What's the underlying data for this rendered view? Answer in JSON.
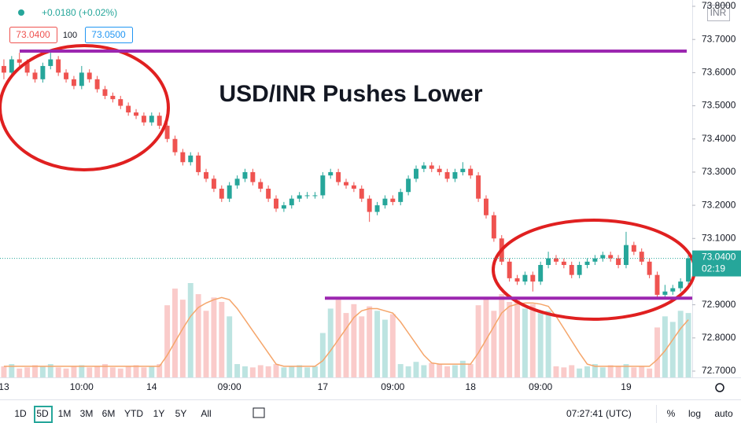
{
  "chart_data": {
    "type": "candlestick",
    "title": "USD/INR Pushes Lower",
    "header": {
      "change": "+0.0180 (+0.02%)",
      "bid": "73.0400",
      "spread": "100",
      "ask": "73.0500"
    },
    "currency": "INR",
    "up_color": "#26a69a",
    "down_color": "#ef5350",
    "ma_color": "#f5a56a",
    "level_color": "#9c27b0",
    "categories": [
      "13",
      null,
      null,
      null,
      null,
      null,
      null,
      null,
      null,
      null,
      "10:00",
      null,
      null,
      null,
      null,
      null,
      null,
      null,
      null,
      "14",
      null,
      null,
      null,
      null,
      null,
      null,
      null,
      null,
      null,
      "09:00",
      null,
      null,
      null,
      null,
      null,
      null,
      null,
      null,
      null,
      null,
      null,
      "17",
      null,
      null,
      null,
      null,
      null,
      null,
      null,
      null,
      "09:00",
      null,
      null,
      null,
      null,
      null,
      null,
      null,
      null,
      null,
      "18",
      null,
      null,
      null,
      null,
      null,
      null,
      null,
      null,
      "09:00",
      null,
      null,
      null,
      null,
      null,
      null,
      null,
      null,
      null,
      null,
      "19",
      null,
      null,
      null,
      null,
      null,
      null,
      null,
      null
    ],
    "ohlc": [
      [
        73.62,
        73.64,
        73.58,
        73.6
      ],
      [
        73.6,
        73.65,
        73.59,
        73.64
      ],
      [
        73.64,
        73.66,
        73.62,
        73.63
      ],
      [
        73.63,
        73.64,
        73.59,
        73.6
      ],
      [
        73.6,
        73.61,
        73.57,
        73.58
      ],
      [
        73.58,
        73.63,
        73.57,
        73.62
      ],
      [
        73.62,
        73.66,
        73.61,
        73.64
      ],
      [
        73.64,
        73.65,
        73.59,
        73.6
      ],
      [
        73.6,
        73.61,
        73.57,
        73.58
      ],
      [
        73.58,
        73.59,
        73.55,
        73.56
      ],
      [
        73.56,
        73.62,
        73.55,
        73.6
      ],
      [
        73.6,
        73.61,
        73.57,
        73.58
      ],
      [
        73.58,
        73.59,
        73.54,
        73.55
      ],
      [
        73.55,
        73.56,
        73.52,
        73.53
      ],
      [
        73.53,
        73.54,
        73.51,
        73.52
      ],
      [
        73.52,
        73.53,
        73.49,
        73.5
      ],
      [
        73.5,
        73.51,
        73.47,
        73.48
      ],
      [
        73.48,
        73.49,
        73.46,
        73.47
      ],
      [
        73.47,
        73.48,
        73.44,
        73.45
      ],
      [
        73.45,
        73.48,
        73.44,
        73.47
      ],
      [
        73.47,
        73.48,
        73.43,
        73.44
      ],
      [
        73.44,
        73.45,
        73.39,
        73.4
      ],
      [
        73.4,
        73.41,
        73.35,
        73.36
      ],
      [
        73.36,
        73.37,
        73.32,
        73.33
      ],
      [
        73.33,
        73.36,
        73.32,
        73.35
      ],
      [
        73.35,
        73.36,
        73.29,
        73.3
      ],
      [
        73.3,
        73.31,
        73.27,
        73.28
      ],
      [
        73.28,
        73.29,
        73.24,
        73.25
      ],
      [
        73.25,
        73.26,
        73.21,
        73.22
      ],
      [
        73.22,
        73.27,
        73.21,
        73.26
      ],
      [
        73.26,
        73.29,
        73.25,
        73.28
      ],
      [
        73.28,
        73.31,
        73.27,
        73.3
      ],
      [
        73.3,
        73.31,
        73.26,
        73.27
      ],
      [
        73.27,
        73.28,
        73.24,
        73.25
      ],
      [
        73.25,
        73.26,
        73.21,
        73.22
      ],
      [
        73.22,
        73.23,
        73.18,
        73.19
      ],
      [
        73.19,
        73.21,
        73.18,
        73.2
      ],
      [
        73.2,
        73.23,
        73.19,
        73.22
      ],
      [
        73.22,
        73.24,
        73.21,
        73.23
      ],
      [
        73.23,
        73.24,
        73.22,
        73.23
      ],
      [
        73.23,
        73.24,
        73.22,
        73.23
      ],
      [
        73.23,
        73.3,
        73.22,
        73.29
      ],
      [
        73.29,
        73.31,
        73.28,
        73.3
      ],
      [
        73.3,
        73.31,
        73.26,
        73.27
      ],
      [
        73.27,
        73.28,
        73.25,
        73.26
      ],
      [
        73.26,
        73.27,
        73.24,
        73.25
      ],
      [
        73.25,
        73.26,
        73.21,
        73.22
      ],
      [
        73.22,
        73.23,
        73.15,
        73.18
      ],
      [
        73.18,
        73.21,
        73.17,
        73.2
      ],
      [
        73.2,
        73.23,
        73.19,
        73.22
      ],
      [
        73.22,
        73.23,
        73.2,
        73.21
      ],
      [
        73.21,
        73.25,
        73.2,
        73.24
      ],
      [
        73.24,
        73.29,
        73.23,
        73.28
      ],
      [
        73.28,
        73.32,
        73.27,
        73.31
      ],
      [
        73.31,
        73.33,
        73.3,
        73.32
      ],
      [
        73.32,
        73.33,
        73.3,
        73.31
      ],
      [
        73.31,
        73.32,
        73.29,
        73.3
      ],
      [
        73.3,
        73.31,
        73.27,
        73.28
      ],
      [
        73.28,
        73.31,
        73.27,
        73.3
      ],
      [
        73.3,
        73.33,
        73.29,
        73.31
      ],
      [
        73.31,
        73.32,
        73.28,
        73.29
      ],
      [
        73.29,
        73.3,
        73.21,
        73.22
      ],
      [
        73.22,
        73.23,
        73.16,
        73.17
      ],
      [
        73.17,
        73.18,
        73.09,
        73.1
      ],
      [
        73.1,
        73.11,
        73.02,
        73.03
      ],
      [
        73.03,
        73.04,
        72.97,
        72.98
      ],
      [
        72.98,
        72.99,
        72.96,
        72.97
      ],
      [
        72.97,
        73.0,
        72.96,
        72.99
      ],
      [
        72.99,
        73.0,
        72.94,
        72.97
      ],
      [
        72.97,
        73.03,
        72.96,
        73.02
      ],
      [
        73.02,
        73.06,
        73.01,
        73.04
      ],
      [
        73.04,
        73.05,
        73.02,
        73.03
      ],
      [
        73.03,
        73.04,
        73.01,
        73.02
      ],
      [
        73.02,
        73.03,
        72.98,
        72.99
      ],
      [
        72.99,
        73.03,
        72.98,
        73.02
      ],
      [
        73.02,
        73.04,
        73.01,
        73.03
      ],
      [
        73.03,
        73.05,
        73.02,
        73.04
      ],
      [
        73.04,
        73.06,
        73.03,
        73.05
      ],
      [
        73.05,
        73.06,
        73.03,
        73.04
      ],
      [
        73.04,
        73.05,
        73.01,
        73.02
      ],
      [
        73.02,
        73.12,
        73.01,
        73.08
      ],
      [
        73.08,
        73.09,
        73.05,
        73.06
      ],
      [
        73.06,
        73.07,
        73.02,
        73.03
      ],
      [
        73.03,
        73.04,
        72.98,
        72.99
      ],
      [
        72.99,
        73.0,
        72.92,
        72.93
      ],
      [
        72.93,
        72.96,
        72.92,
        72.94
      ],
      [
        72.94,
        72.96,
        72.93,
        72.95
      ],
      [
        72.95,
        72.98,
        72.94,
        72.97
      ],
      [
        72.97,
        73.05,
        72.96,
        73.04
      ]
    ],
    "volume": [
      10,
      12,
      8,
      9,
      11,
      10,
      12,
      9,
      8,
      10,
      11,
      9,
      10,
      12,
      9,
      8,
      10,
      11,
      9,
      10,
      12,
      65,
      80,
      70,
      85,
      75,
      60,
      72,
      68,
      55,
      12,
      10,
      9,
      11,
      10,
      12,
      9,
      10,
      11,
      9,
      10,
      40,
      62,
      70,
      58,
      66,
      55,
      64,
      60,
      52,
      57,
      12,
      10,
      14,
      11,
      13,
      12,
      10,
      11,
      15,
      12,
      65,
      72,
      60,
      75,
      68,
      70,
      62,
      66,
      58,
      60,
      10,
      9,
      11,
      8,
      10,
      12,
      9,
      11,
      10,
      12,
      9,
      10,
      8,
      45,
      55,
      50,
      60,
      58
    ],
    "volume_ma": [
      10,
      10,
      10,
      10,
      10,
      10,
      10,
      10,
      10,
      10,
      10,
      10,
      10,
      10,
      10,
      10,
      10,
      10,
      10,
      10,
      10,
      20,
      32,
      44,
      55,
      63,
      67,
      70,
      72,
      70,
      62,
      52,
      42,
      32,
      22,
      12,
      10,
      10,
      10,
      10,
      10,
      15,
      24,
      34,
      44,
      54,
      60,
      62,
      62,
      60,
      58,
      50,
      40,
      30,
      20,
      13,
      12,
      12,
      12,
      12,
      12,
      22,
      34,
      46,
      58,
      64,
      66,
      67,
      67,
      66,
      64,
      55,
      44,
      33,
      22,
      12,
      10,
      10,
      10,
      10,
      10,
      10,
      10,
      10,
      16,
      24,
      34,
      44,
      52
    ],
    "levels": [
      73.665,
      72.92
    ],
    "last_price": {
      "value": 73.04,
      "label": "73.0400"
    },
    "countdown": "02:19",
    "ylim": [
      72.681,
      73.819
    ],
    "yticks": [
      {
        "value": 72.7,
        "label": "72.7000"
      },
      {
        "value": 72.8,
        "label": "72.8000"
      },
      {
        "value": 72.9,
        "label": "72.9000"
      },
      {
        "value": 73.0,
        "label": "73.0000"
      },
      {
        "value": 73.1,
        "label": "73.1000"
      },
      {
        "value": 73.2,
        "label": "73.2000"
      },
      {
        "value": 73.3,
        "label": "73.3000"
      },
      {
        "value": 73.4,
        "label": "73.4000"
      },
      {
        "value": 73.5,
        "label": "73.5000"
      },
      {
        "value": 73.6,
        "label": "73.6000"
      },
      {
        "value": 73.7,
        "label": "73.7000"
      },
      {
        "value": 73.8,
        "label": "73.8000"
      }
    ]
  },
  "toolbar": {
    "ranges": [
      "1D",
      "5D",
      "1M",
      "3M",
      "6M",
      "YTD",
      "1Y",
      "5Y",
      "All"
    ],
    "active": "5D",
    "clock": "07:27:41 (UTC)",
    "options": [
      "%",
      "log",
      "auto"
    ]
  }
}
